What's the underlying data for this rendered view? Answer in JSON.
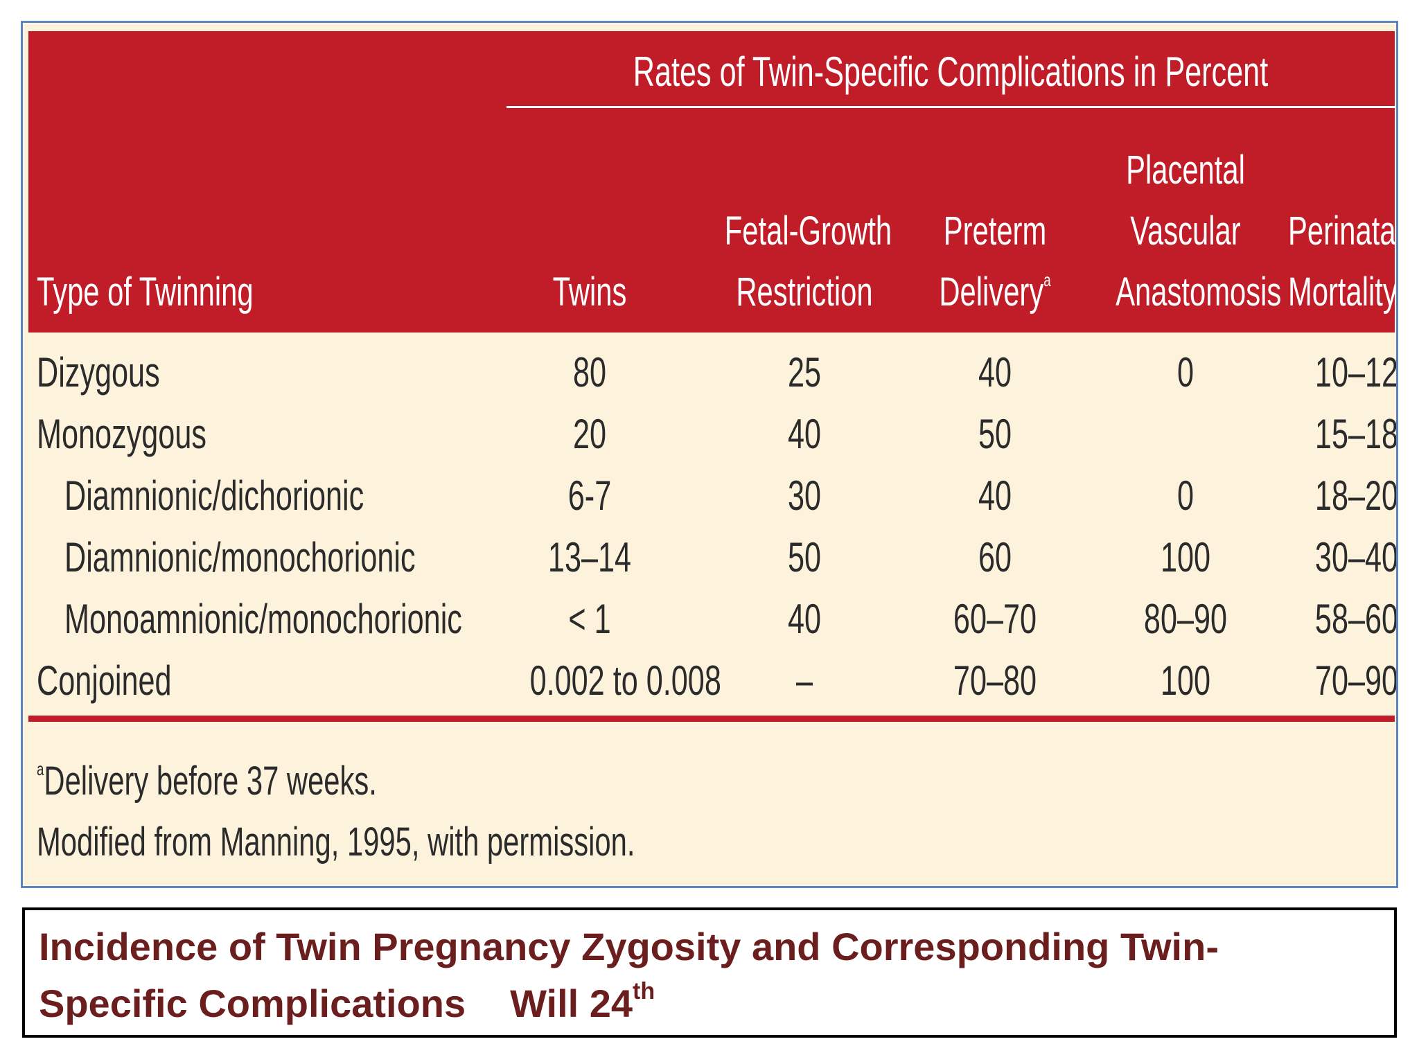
{
  "table": {
    "group_header": "Rates of Twin-Specific Complications in Percent",
    "columns": {
      "type": "Type of Twinning",
      "twins": "Twins",
      "fgr_1": "Fetal-Growth",
      "fgr_2": "Restriction",
      "preterm_1": "Preterm",
      "preterm_2": "Delivery",
      "preterm_fn": "a",
      "pva_1": "Placental",
      "pva_2": "Vascular",
      "pva_3": "Anastomosis",
      "pm_1": "Perinatal",
      "pm_2": "Mortality"
    },
    "rows": [
      {
        "type": "Dizygous",
        "twins": "80",
        "fgr": "25",
        "preterm": "40",
        "pva": "0",
        "pm": "10–12"
      },
      {
        "type": "Monozygous",
        "twins": "20",
        "fgr": "40",
        "preterm": "50",
        "pva": "",
        "pm": "15–18"
      },
      {
        "type": "Diamnionic/dichorionic",
        "twins": "6-7",
        "fgr": "30",
        "preterm": "40",
        "pva": "0",
        "pm": "18–20"
      },
      {
        "type": "Diamnionic/monochorionic",
        "twins": "13–14",
        "fgr": "50",
        "preterm": "60",
        "pva": "100",
        "pm": "30–40"
      },
      {
        "type": "Monoamnionic/monochorionic",
        "twins": "< 1",
        "fgr": "40",
        "preterm": "60–70",
        "pva": "80–90",
        "pm": "58–60"
      },
      {
        "type": "Conjoined",
        "twins": "0.002 to 0.008",
        "fgr": "–",
        "preterm": "70–80",
        "pva": "100",
        "pm": "70–90"
      }
    ],
    "footnote_marker": "a",
    "footnote": "Delivery before 37 weeks.",
    "source": "Modified from Manning, 1995, with permission."
  },
  "caption": {
    "line1": "Incidence of Twin Pregnancy Zygosity and Corresponding Twin-",
    "line2": "Specific Complications",
    "edition": "Will 24",
    "edition_sup": "th"
  },
  "colors": {
    "header_red": "#c01d29",
    "body_cream": "#fdf3dc",
    "frame_blue": "#5b86c0",
    "caption_text": "#6b1e1e"
  }
}
